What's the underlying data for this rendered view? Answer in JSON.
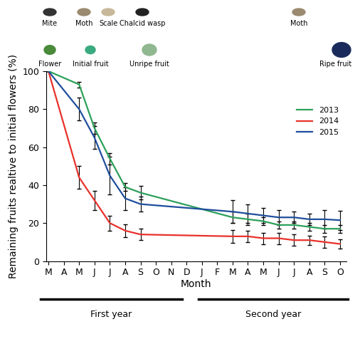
{
  "chart_data": {
    "type": "line",
    "y_label": "Remaining fruits realtive to initial flowers (%)",
    "x_label": "Month",
    "categories": [
      "M",
      "A",
      "M",
      "J",
      "J",
      "A",
      "S",
      "O",
      "N",
      "D",
      "J",
      "F",
      "M",
      "A",
      "M",
      "J",
      "J",
      "A",
      "S",
      "O"
    ],
    "series": [
      {
        "name": "2013",
        "color": "#2ca05a",
        "marker": "none",
        "line_style": "solid",
        "values": [
          100,
          null,
          93,
          70,
          54,
          39,
          36,
          null,
          null,
          null,
          null,
          null,
          23,
          22,
          21,
          19,
          19,
          18,
          17,
          17
        ],
        "errors": [
          0,
          null,
          1.5,
          3,
          3,
          2,
          3.5,
          null,
          null,
          null,
          null,
          null,
          3,
          3,
          2,
          2,
          2,
          2,
          2,
          2
        ]
      },
      {
        "name": "2014",
        "color": "#e8312a",
        "marker": "none",
        "line_style": "solid",
        "values": [
          100,
          null,
          44,
          32,
          20,
          16,
          14,
          null,
          null,
          null,
          null,
          null,
          13,
          13,
          12,
          12,
          11,
          11,
          10,
          9
        ],
        "errors": [
          0,
          null,
          6,
          5,
          4,
          3.5,
          3,
          null,
          null,
          null,
          null,
          null,
          3.5,
          3,
          3,
          3,
          3,
          2.5,
          3,
          2.5
        ]
      },
      {
        "name": "2015",
        "color": "#1f4e9c",
        "marker": "none",
        "line_style": "solid",
        "values": [
          100,
          null,
          80,
          65,
          45,
          33,
          30,
          null,
          null,
          null,
          null,
          null,
          26,
          25,
          24,
          23,
          23,
          22,
          22,
          21.5
        ],
        "errors": [
          0,
          null,
          6,
          6,
          10,
          6,
          4,
          null,
          null,
          null,
          null,
          null,
          6,
          5,
          4,
          4,
          3,
          3,
          5,
          5
        ]
      }
    ],
    "ylim": [
      0,
      100
    ],
    "yticks": [
      0,
      20,
      40,
      60,
      80,
      100
    ],
    "grid": false,
    "legend": "upper right",
    "annotations": {
      "pests": [
        "Mite",
        "Moth",
        "Scale",
        "Chalcid wasp",
        "Moth"
      ],
      "stages": [
        "Flower",
        "Initial fruit",
        "Unripe fruit",
        "Ripe fruit"
      ],
      "periods": [
        "First year",
        "Second year"
      ]
    }
  }
}
